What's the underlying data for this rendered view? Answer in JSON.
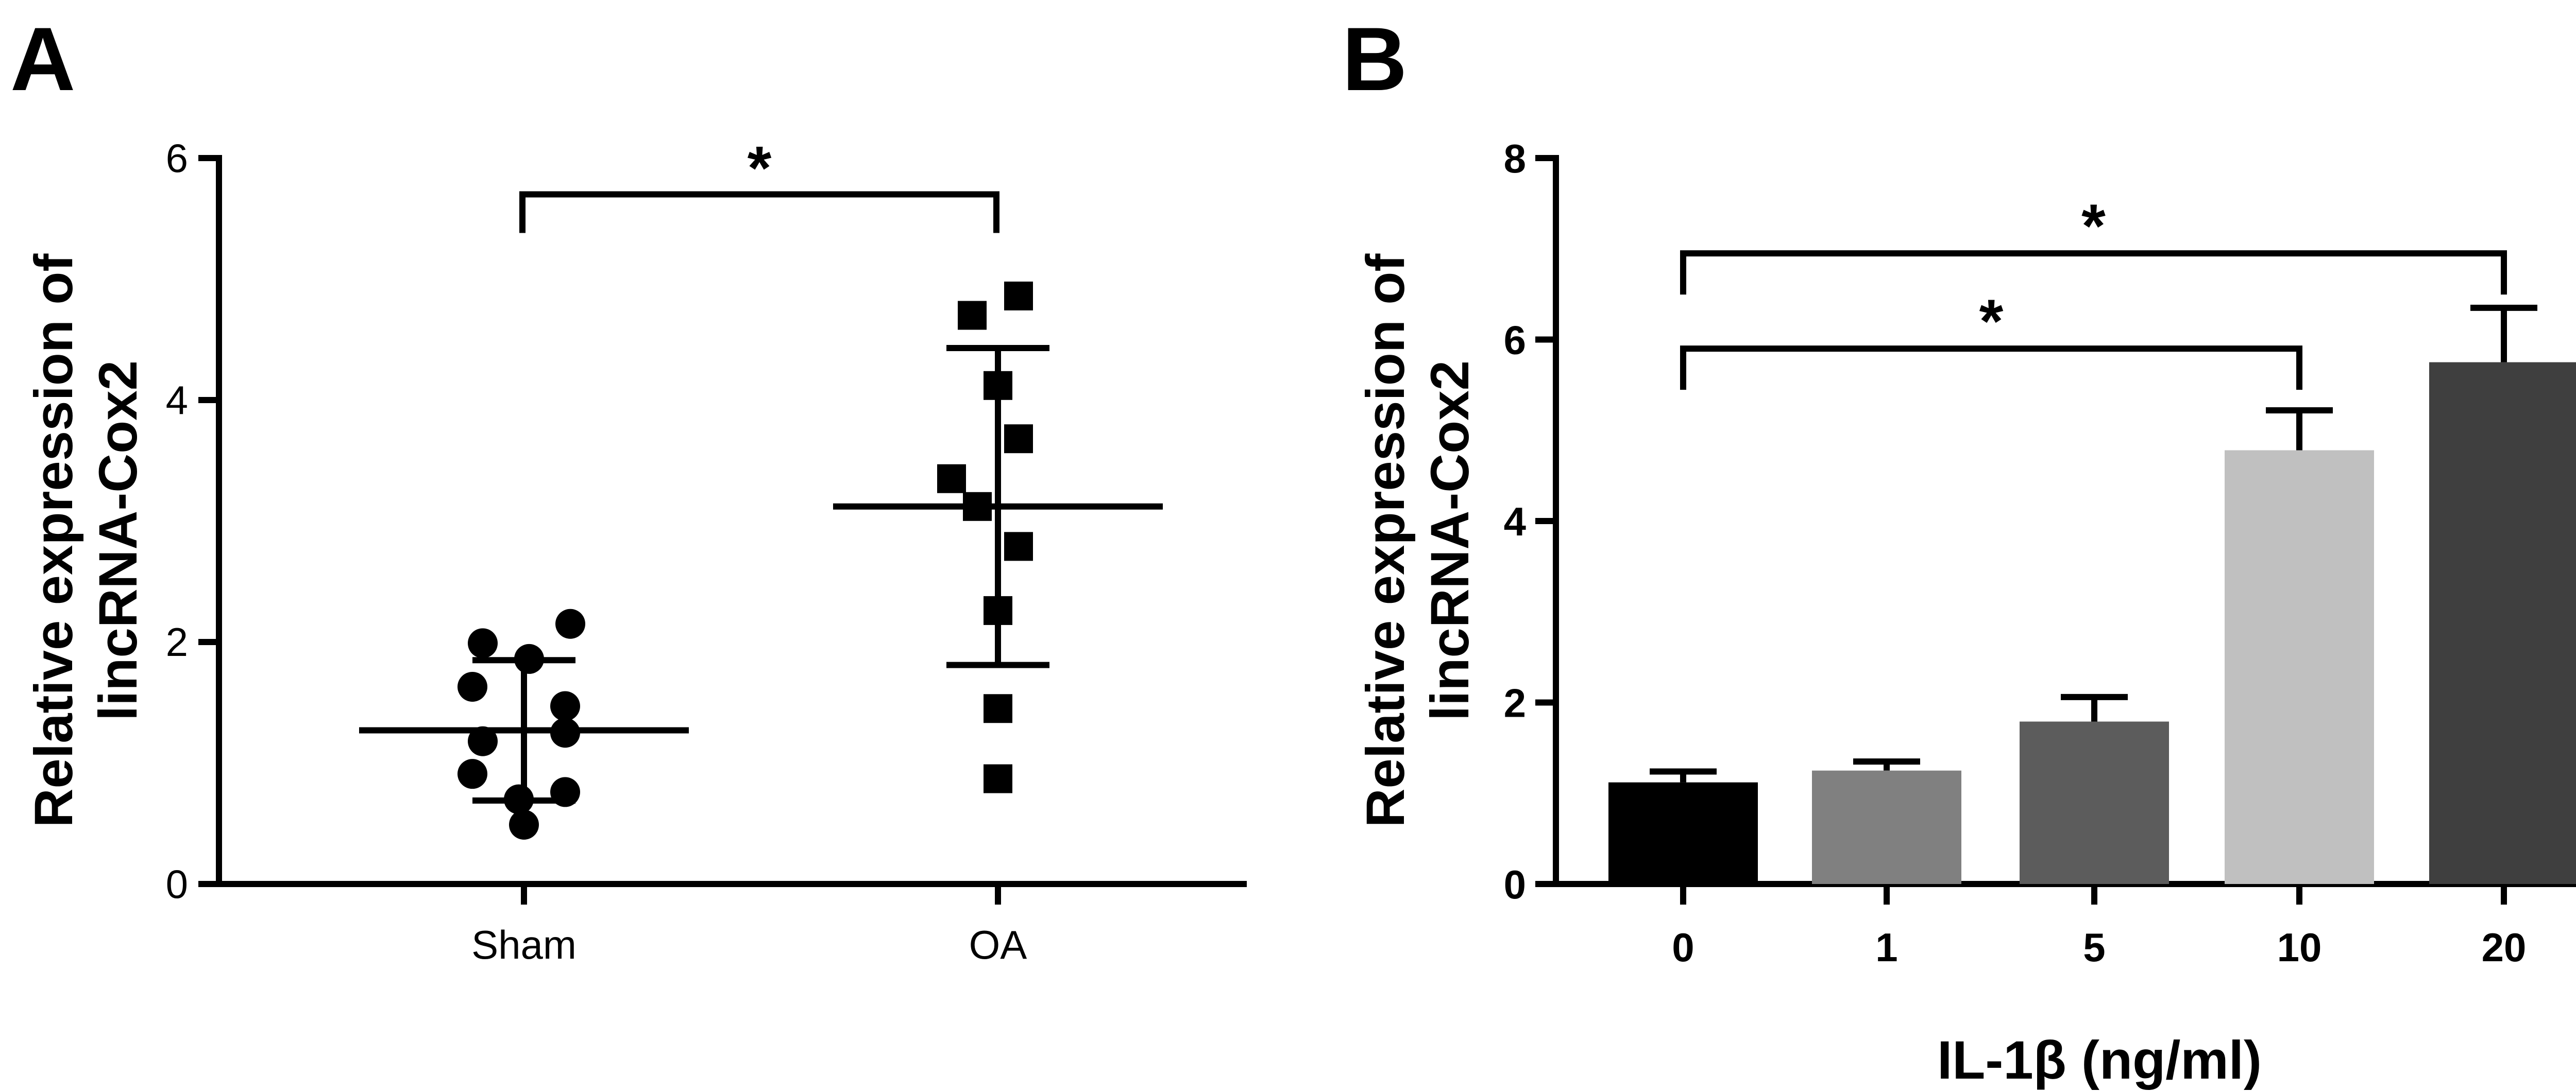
{
  "chart_data": [
    {
      "panel_label": "A",
      "type": "scatter",
      "title": "",
      "categories": [
        "Sham",
        "OA"
      ],
      "ylabel_line1": "Relative expression of",
      "ylabel_line2": "lincRNA-Cox2",
      "ylim": [
        0,
        6
      ],
      "yticks": [
        "0",
        "2",
        "4",
        "6"
      ],
      "grid": false,
      "series": [
        {
          "category": "Sham",
          "marker": "circle",
          "values": [
            2.15,
            1.99,
            1.86,
            1.63,
            1.47,
            1.18,
            1.25,
            0.91,
            0.76,
            0.7,
            0.49
          ],
          "mean": 1.27,
          "sd": 0.58
        },
        {
          "category": "OA",
          "marker": "square",
          "values": [
            4.86,
            4.7,
            4.12,
            3.68,
            3.35,
            3.12,
            2.79,
            2.26,
            1.45,
            0.87
          ],
          "mean": 3.12,
          "sd": 1.31
        }
      ],
      "significance": [
        {
          "from": "Sham",
          "to": "OA",
          "label": "*",
          "y": 5.7
        }
      ]
    },
    {
      "panel_label": "B",
      "type": "bar",
      "title": "",
      "categories": [
        "0",
        "1",
        "5",
        "10",
        "20"
      ],
      "values": [
        1.12,
        1.25,
        1.79,
        4.78,
        5.75
      ],
      "errors": [
        0.12,
        0.1,
        0.27,
        0.44,
        0.6
      ],
      "colors": [
        "#000000",
        "#808080",
        "#5c5c5c",
        "#c0c0c0",
        "#3f3f3f"
      ],
      "xlabel": "IL-1β (ng/ml)",
      "ylabel_line1": "Relative expression of",
      "ylabel_line2": "lincRNA-Cox2",
      "ylim": [
        0,
        8
      ],
      "yticks": [
        "0",
        "2",
        "4",
        "6",
        "8"
      ],
      "grid": false,
      "significance": [
        {
          "from": "0",
          "to": "10",
          "label": "*",
          "y": 5.9
        },
        {
          "from": "0",
          "to": "20",
          "label": "*",
          "y": 6.95
        }
      ]
    }
  ]
}
